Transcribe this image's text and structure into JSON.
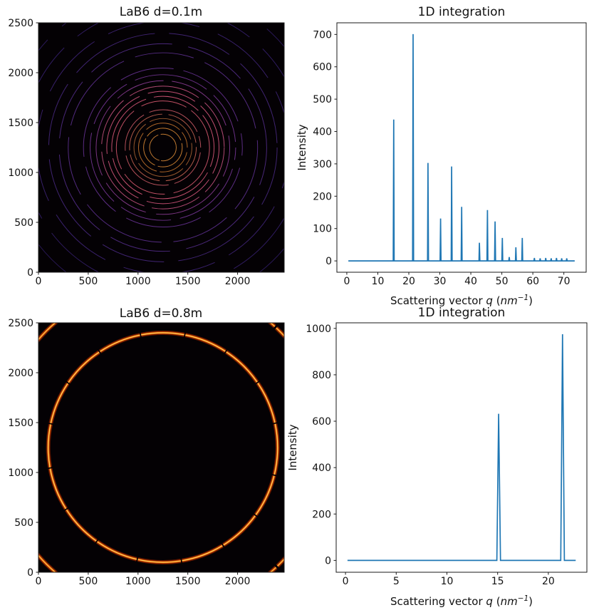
{
  "figure": {
    "background": "#ffffff",
    "line_blue": "#1f77b4",
    "axes_color": "#1a1a1a"
  },
  "chart_data": [
    {
      "type": "heatmap",
      "subtype": "powder-diffraction-ring-image",
      "title": "LaB6 d=0.1m",
      "xlim": [
        0,
        2468
      ],
      "ylim": [
        0,
        2500
      ],
      "xticks": [
        0,
        500,
        1000,
        1500,
        2000
      ],
      "yticks": [
        0,
        500,
        1000,
        1500,
        2000,
        2500
      ],
      "center": [
        1250,
        1250
      ],
      "background": "#040104",
      "rings": [
        {
          "r": 134,
          "color": "#c07a32",
          "dash": [
            0.3,
            0.02,
            0.4,
            0.03
          ],
          "rot": 10
        },
        {
          "r": 194,
          "color": "#c47c30",
          "dash": [
            0.26,
            0.02,
            0.34,
            0.025
          ],
          "rot": 118
        },
        {
          "r": 245,
          "color": "#ad6628",
          "dash": [
            0.24,
            0.02,
            0.31,
            0.03
          ],
          "rot": 205
        },
        {
          "r": 291,
          "color": "#96582e",
          "dash": [
            0.22,
            0.025,
            0.28,
            0.02
          ],
          "rot": 42
        },
        {
          "r": 335,
          "color": "#b25a4a",
          "dash": [
            0.2,
            0.02,
            0.26,
            0.03
          ],
          "rot": 88
        },
        {
          "r": 379,
          "color": "#b4505a",
          "dash": [
            0.18,
            0.025,
            0.24,
            0.02
          ],
          "rot": 160
        },
        {
          "r": 468,
          "color": "#c05064",
          "dash": [
            0.16,
            0.02,
            0.22,
            0.03
          ],
          "rot": 222
        },
        {
          "r": 514,
          "color": "#c5506e",
          "dash": [
            0.15,
            0.02,
            0.21,
            0.025
          ],
          "rot": 32
        },
        {
          "r": 564,
          "color": "#c04e70",
          "dash": [
            0.14,
            0.02,
            0.2,
            0.025
          ],
          "rot": 300
        },
        {
          "r": 616,
          "color": "#b04a72",
          "dash": [
            0.13,
            0.02,
            0.19,
            0.02
          ],
          "rot": 76
        },
        {
          "r": 671,
          "color": "#7c3684",
          "dash": [
            0.12,
            0.02,
            0.175,
            0.025
          ],
          "rot": 140
        },
        {
          "r": 731,
          "color": "#6a3188",
          "dash": [
            0.115,
            0.02,
            0.165,
            0.02
          ],
          "rot": 262
        },
        {
          "r": 798,
          "color": "#5c2d84",
          "dash": [
            0.11,
            0.02,
            0.155,
            0.025
          ],
          "rot": 320
        },
        {
          "r": 951,
          "color": "#532b80",
          "dash": [
            0.1,
            0.02,
            0.145,
            0.02
          ],
          "rot": 55
        },
        {
          "r": 1042,
          "color": "#4a287a",
          "dash": [
            0.095,
            0.02,
            0.135,
            0.025
          ],
          "rot": 112
        },
        {
          "r": 1147,
          "color": "#402472",
          "dash": [
            0.09,
            0.02,
            0.125,
            0.02
          ],
          "rot": 186
        },
        {
          "r": 1266,
          "color": "#38206a",
          "dash": [
            0.085,
            0.02,
            0.118,
            0.025
          ],
          "rot": 240
        },
        {
          "r": 1409,
          "color": "#301c62",
          "dash": [
            0.08,
            0.02,
            0.11,
            0.02
          ],
          "rot": 16
        },
        {
          "r": 1584,
          "color": "#2a1858",
          "dash": [
            0.075,
            0.02,
            0.105,
            0.025
          ],
          "rot": 290
        },
        {
          "r": 1790,
          "color": "#24144e",
          "dash": [
            0.07,
            0.02,
            0.1,
            0.02
          ],
          "rot": 152
        }
      ]
    },
    {
      "type": "line",
      "title": "1D integration",
      "xlabel": "Scattering vector q (nm⁻¹)",
      "xlabel_parts": {
        "prefix": "Scattering vector ",
        "var": "q",
        "open": " (",
        "unit": "nm",
        "sup": "−1",
        "close": ")"
      },
      "ylabel": "Intensity",
      "xlim": [
        -3.2,
        77.2
      ],
      "ylim": [
        -35,
        736
      ],
      "xticks": [
        0,
        10,
        20,
        30,
        40,
        50,
        60,
        70
      ],
      "yticks": [
        0,
        100,
        200,
        300,
        400,
        500,
        600,
        700
      ],
      "line_color": "#1f77b4",
      "baseline": {
        "x_start": 0.5,
        "x_end": 73.5,
        "y": 0
      },
      "peak_halfwidth": 0.15,
      "peaks": [
        {
          "q": 15.12,
          "i": 437
        },
        {
          "q": 21.38,
          "i": 701
        },
        {
          "q": 26.19,
          "i": 303
        },
        {
          "q": 30.24,
          "i": 131
        },
        {
          "q": 33.81,
          "i": 292
        },
        {
          "q": 37.04,
          "i": 167
        },
        {
          "q": 42.77,
          "i": 56
        },
        {
          "q": 45.36,
          "i": 157
        },
        {
          "q": 47.82,
          "i": 122
        },
        {
          "q": 50.16,
          "i": 71
        },
        {
          "q": 52.39,
          "i": 12
        },
        {
          "q": 54.53,
          "i": 42
        },
        {
          "q": 56.59,
          "i": 71
        },
        {
          "q": 60.49,
          "i": 9
        },
        {
          "q": 62.36,
          "i": 8
        },
        {
          "q": 64.16,
          "i": 9
        },
        {
          "q": 65.92,
          "i": 8
        },
        {
          "q": 67.63,
          "i": 9
        },
        {
          "q": 69.3,
          "i": 8
        },
        {
          "q": 70.93,
          "i": 8
        }
      ]
    },
    {
      "type": "heatmap",
      "subtype": "powder-diffraction-ring-image",
      "title": "LaB6 d=0.8m",
      "xlim": [
        0,
        2468
      ],
      "ylim": [
        0,
        2500
      ],
      "xticks": [
        0,
        500,
        1000,
        1500,
        2000
      ],
      "yticks": [
        0,
        500,
        1000,
        1500,
        2000,
        2500
      ],
      "center": [
        1250,
        1250
      ],
      "background": "#040104",
      "rings": [
        {
          "r": 1152,
          "rot": 8,
          "dash": [
            0.06,
            0.0018
          ],
          "layers": [
            {
              "w": 44,
              "color": "#571500"
            },
            {
              "w": 28,
              "color": "#b03400"
            },
            {
              "w": 15,
              "color": "#f07c12"
            },
            {
              "w": 7,
              "color": "#ffd866"
            }
          ]
        },
        {
          "r": 1655,
          "rot": 97,
          "dash": [
            0.055,
            0.002
          ],
          "layers": [
            {
              "w": 44,
              "color": "#571500"
            },
            {
              "w": 28,
              "color": "#ad3300"
            },
            {
              "w": 14,
              "color": "#ee7910"
            },
            {
              "w": 6,
              "color": "#ffd35e"
            }
          ]
        }
      ]
    },
    {
      "type": "line",
      "title": "1D integration",
      "xlabel": "Scattering vector q (nm⁻¹)",
      "xlabel_parts": {
        "prefix": "Scattering vector ",
        "var": "q",
        "open": " (",
        "unit": "nm",
        "sup": "−1",
        "close": ")"
      },
      "ylabel": "Intensity",
      "xlim": [
        -0.92,
        23.8
      ],
      "ylim": [
        -51,
        1024
      ],
      "xticks": [
        0,
        5,
        10,
        15,
        20
      ],
      "yticks": [
        0,
        200,
        400,
        600,
        800,
        1000
      ],
      "line_color": "#1f77b4",
      "baseline": {
        "x_start": 0.2,
        "x_end": 22.7,
        "y": 0
      },
      "peak_halfwidth": 0.18,
      "peaks": [
        {
          "q": 15.1,
          "i": 632
        },
        {
          "q": 21.4,
          "i": 975
        }
      ]
    }
  ]
}
